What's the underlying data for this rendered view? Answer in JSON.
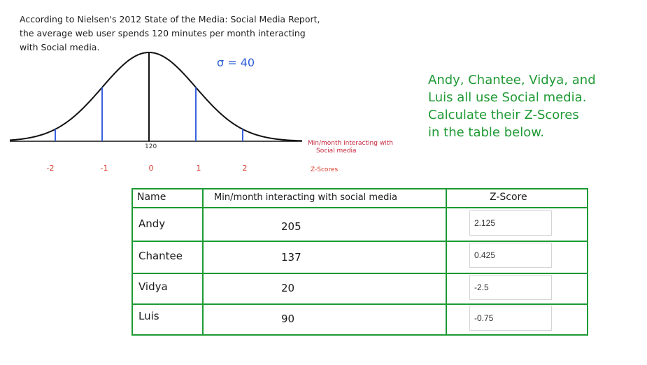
{
  "intro": {
    "line1": "According to Nielsen's 2012 State of the Media: Social Media Report,",
    "line2": "the average web user spends 120 minutes per month interacting",
    "line3": "with Social media."
  },
  "sigma_label": "σ = 40",
  "instructions": {
    "line1": "Andy, Chantee, Vidya, and",
    "line2": "Luis all use Social media.",
    "line3": "Calculate their Z-Scores",
    "line4": "in the table below."
  },
  "curve": {
    "mean_label": "120",
    "x_axis_label_line1": "Min/month interacting with",
    "x_axis_label_line2": "Social media",
    "z_axis_label": "Z-Scores",
    "z_ticks": [
      "-2",
      "-1",
      "0",
      "1",
      "2"
    ],
    "colors": {
      "curve": "#111111",
      "sd_lines": "#3a63e0",
      "zeroline": "#111111"
    }
  },
  "table": {
    "headers": {
      "name": "Name",
      "minutes": "Min/month interacting with social media",
      "zscore": "Z-Score"
    },
    "rows": [
      {
        "name": "Andy",
        "minutes": "205",
        "zscore": "2.125"
      },
      {
        "name": "Chantee",
        "minutes": "137",
        "zscore": "0.425"
      },
      {
        "name": "Vidya",
        "minutes": "20",
        "zscore": "-2.5"
      },
      {
        "name": "Luis",
        "minutes": "90",
        "zscore": "-0.75"
      }
    ],
    "border_color": "#1c9a33"
  }
}
